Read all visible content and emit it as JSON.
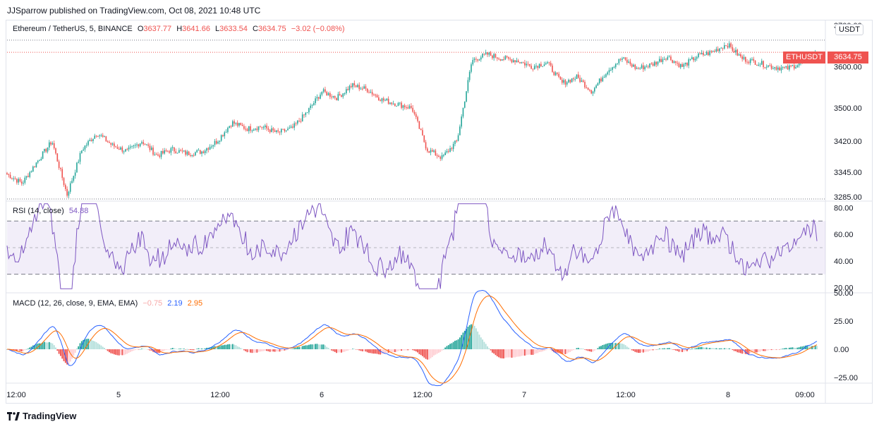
{
  "publisher_line": "JJSparrow published on TradingView.com, Oct 08, 2021 10:48 UTC",
  "symbol_legend": {
    "name": "Ethereum / TetherUS, 5, BINANCE",
    "o_label": "O",
    "o": "3637.77",
    "h_label": "H",
    "h": "3641.66",
    "l_label": "L",
    "l": "3633.54",
    "c_label": "C",
    "c": "3634.75",
    "change": "−3.02 (−0.08%)"
  },
  "currency_button": "USDT",
  "ticker_tag": "ETHUSDT",
  "last_price_tag": "3634.75",
  "rsi_legend": {
    "name": "RSI (14, close)",
    "value": "54.88"
  },
  "macd_legend": {
    "name": "MACD (12, 26, close, 9, EMA, EMA)",
    "hist": "−0.75",
    "macd": "2.19",
    "signal": "2.95"
  },
  "footer_brand": "TradingView",
  "colors": {
    "up": "#26a69a",
    "down": "#ef5350",
    "rsi": "#7e57c2",
    "macd": "#2962ff",
    "signal": "#ff6d00",
    "text": "#131722"
  },
  "chart_data": [
    {
      "type": "candlestick",
      "title": "Ethereum / TetherUS, 5, BINANCE",
      "y_ticks": [
        "3700.00",
        "3600.00",
        "3500.00",
        "3420.00",
        "3345.00",
        "3285.00"
      ],
      "ylim": [
        3275,
        3710
      ],
      "x_ticks": [
        "12:00",
        "5",
        "12:00",
        "6",
        "12:00",
        "7",
        "12:00",
        "8",
        "09:00"
      ],
      "close_path": [
        3340,
        3318,
        3370,
        3420,
        3290,
        3400,
        3440,
        3410,
        3395,
        3420,
        3385,
        3400,
        3390,
        3395,
        3420,
        3465,
        3450,
        3455,
        3440,
        3450,
        3490,
        3540,
        3525,
        3555,
        3545,
        3520,
        3510,
        3500,
        3400,
        3380,
        3420,
        3615,
        3630,
        3620,
        3615,
        3600,
        3610,
        3560,
        3575,
        3540,
        3590,
        3620,
        3595,
        3605,
        3625,
        3600,
        3625,
        3635,
        3655,
        3620,
        3610,
        3600,
        3595,
        3610,
        3634.75
      ],
      "last": 3634.75
    },
    {
      "type": "line",
      "title": "RSI (14, close)",
      "y_ticks": [
        "80.00",
        "60.00",
        "40.00",
        "20.00"
      ],
      "ylim": [
        16,
        85
      ],
      "bands": [
        30,
        50,
        70
      ],
      "last": 54.88
    },
    {
      "type": "line",
      "title": "MACD (12, 26, close, 9, EMA, EMA)",
      "y_ticks": [
        "50.00",
        "25.00",
        "0.00",
        "−25.00"
      ],
      "ylim": [
        -30,
        50
      ],
      "series": [
        {
          "name": "MACD",
          "color": "#2962ff",
          "last": 2.19
        },
        {
          "name": "Signal",
          "color": "#ff6d00",
          "last": 2.95
        },
        {
          "name": "Histogram",
          "last": -0.75
        }
      ]
    }
  ]
}
